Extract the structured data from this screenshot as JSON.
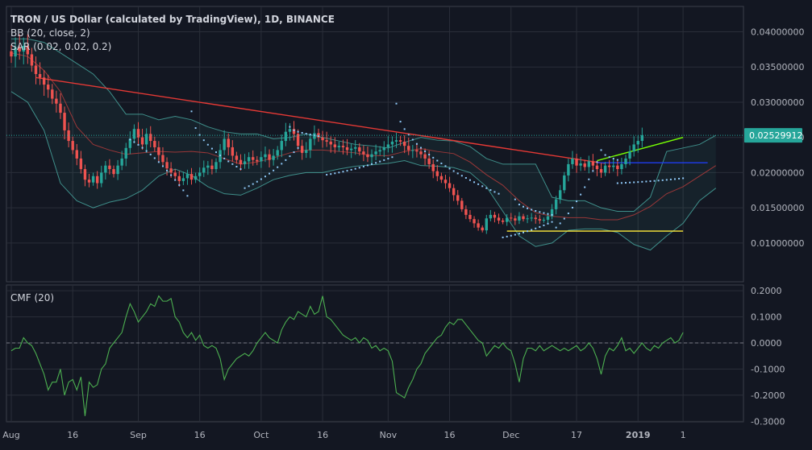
{
  "legend": {
    "title": "TRON / US Dollar (calculated by TradingView), 1D, BINANCE",
    "bb": "BB (20, close, 2)",
    "sar": "SAR (0.02, 0.02, 0.2)",
    "cmf": "CMF (20)"
  },
  "colors": {
    "background": "#131722",
    "up": "#26a69a",
    "down": "#ef5350",
    "bb_band": "#4db6ac",
    "bb_basis": "#b23b3b",
    "sar": "#90caf9",
    "cmf": "#4caf50",
    "trend_red": "#e53935",
    "trend_green": "#76ff03",
    "line_yellow": "#ffeb3b",
    "line_blue": "#1e3cf0",
    "price_badge": "#26a69a"
  },
  "chart_data": [
    {
      "type": "candlestick",
      "price_label": "0.02529912",
      "y_ticks": [
        "0.04000000",
        "0.03500000",
        "0.03000000",
        "0.02500000",
        "0.02000000",
        "0.01500000",
        "0.01000000"
      ],
      "y_tick_values": [
        0.04,
        0.035,
        0.03,
        0.025,
        0.02,
        0.015,
        0.01
      ],
      "ylim": [
        0.007,
        0.043
      ],
      "x_ticks": [
        "Aug",
        "16",
        "Sep",
        "16",
        "Oct",
        "16",
        "Nov",
        "16",
        "Dec",
        "17",
        "2019",
        "1"
      ],
      "x_tick_day_index": [
        0,
        15,
        31,
        46,
        61,
        76,
        92,
        107,
        122,
        138,
        153,
        164
      ],
      "ohlc_day0": "2018-08-01",
      "ohlc_close": [
        0.0365,
        0.0378,
        0.0372,
        0.038,
        0.0368,
        0.0352,
        0.034,
        0.0335,
        0.0325,
        0.0318,
        0.0305,
        0.0298,
        0.0285,
        0.026,
        0.0245,
        0.0232,
        0.022,
        0.0205,
        0.019,
        0.0186,
        0.0195,
        0.0185,
        0.02,
        0.021,
        0.0205,
        0.0198,
        0.021,
        0.022,
        0.0235,
        0.0248,
        0.0262,
        0.025,
        0.024,
        0.0255,
        0.0245,
        0.0236,
        0.0225,
        0.0215,
        0.0206,
        0.02,
        0.0195,
        0.0188,
        0.0192,
        0.0198,
        0.019,
        0.0195,
        0.02,
        0.0207,
        0.021,
        0.0205,
        0.0215,
        0.0232,
        0.0248,
        0.0236,
        0.0224,
        0.0218,
        0.0212,
        0.0216,
        0.0222,
        0.0218,
        0.0216,
        0.0222,
        0.0226,
        0.0218,
        0.0224,
        0.0232,
        0.0245,
        0.0258,
        0.0262,
        0.0255,
        0.0238,
        0.0228,
        0.0232,
        0.0248,
        0.0256,
        0.025,
        0.0246,
        0.0244,
        0.024,
        0.0236,
        0.0238,
        0.0236,
        0.0232,
        0.0234,
        0.0236,
        0.023,
        0.0226,
        0.0222,
        0.0226,
        0.023,
        0.0232,
        0.0236,
        0.024,
        0.0244,
        0.0246,
        0.0244,
        0.0238,
        0.0232,
        0.0232,
        0.023,
        0.0226,
        0.022,
        0.0212,
        0.0202,
        0.0195,
        0.019,
        0.0185,
        0.0178,
        0.0168,
        0.016,
        0.0148,
        0.014,
        0.0134,
        0.0128,
        0.0122,
        0.0118,
        0.0135,
        0.014,
        0.0136,
        0.0132,
        0.013,
        0.0136,
        0.0135,
        0.0132,
        0.0138,
        0.0134,
        0.0135,
        0.0136,
        0.0134,
        0.0132,
        0.0133,
        0.0138,
        0.0148,
        0.0162,
        0.0175,
        0.0196,
        0.0212,
        0.022,
        0.021,
        0.0213,
        0.0208,
        0.0216,
        0.021,
        0.0205,
        0.02,
        0.021,
        0.0208,
        0.021,
        0.0205,
        0.0212,
        0.022,
        0.023,
        0.024,
        0.0245,
        0.0253
      ],
      "bb_upper": [
        0.039,
        0.039,
        0.0385,
        0.037,
        0.0355,
        0.034,
        0.0315,
        0.0283,
        0.0283,
        0.0275,
        0.028,
        0.0275,
        0.0265,
        0.0258,
        0.0255,
        0.0255,
        0.0248,
        0.025,
        0.0255,
        0.025,
        0.0245,
        0.024,
        0.0238,
        0.0235,
        0.0243,
        0.025,
        0.0246,
        0.0245,
        0.0237,
        0.022,
        0.0212,
        0.0212,
        0.0212,
        0.0165,
        0.016,
        0.016,
        0.015,
        0.0145,
        0.0145,
        0.0165,
        0.023,
        0.0235,
        0.024,
        0.0253
      ],
      "bb_lower": [
        0.0315,
        0.03,
        0.026,
        0.0185,
        0.016,
        0.015,
        0.0158,
        0.0163,
        0.0175,
        0.0195,
        0.0205,
        0.0196,
        0.018,
        0.017,
        0.0168,
        0.0178,
        0.019,
        0.0196,
        0.02,
        0.02,
        0.0205,
        0.0209,
        0.0211,
        0.0213,
        0.0217,
        0.021,
        0.0209,
        0.0207,
        0.02,
        0.018,
        0.0145,
        0.011,
        0.0095,
        0.01,
        0.0118,
        0.012,
        0.012,
        0.0115,
        0.0098,
        0.009,
        0.011,
        0.0128,
        0.016,
        0.0178
      ],
      "bb_basis": [
        0.037,
        0.0365,
        0.0345,
        0.0315,
        0.0265,
        0.024,
        0.0232,
        0.0226,
        0.0228,
        0.023,
        0.0229,
        0.023,
        0.0228,
        0.022,
        0.0212,
        0.0215,
        0.0221,
        0.0228,
        0.0232,
        0.0232,
        0.023,
        0.0228,
        0.0224,
        0.0224,
        0.023,
        0.0234,
        0.023,
        0.0227,
        0.0215,
        0.0197,
        0.0182,
        0.016,
        0.0143,
        0.0138,
        0.0136,
        0.0136,
        0.0133,
        0.0133,
        0.014,
        0.0152,
        0.017,
        0.018,
        0.0195,
        0.021
      ],
      "sar_segments": [
        {
          "from": 29,
          "to": 43,
          "start": 0.0247,
          "end": 0.0167,
          "above": false
        },
        {
          "from": 44,
          "to": 56,
          "start": 0.0287,
          "end": 0.0205,
          "above": true
        },
        {
          "from": 57,
          "to": 70,
          "start": 0.0178,
          "end": 0.0235,
          "above": false
        },
        {
          "from": 68,
          "to": 75,
          "start": 0.0265,
          "end": 0.0252,
          "above": true
        },
        {
          "from": 77,
          "to": 93,
          "start": 0.0197,
          "end": 0.0222,
          "above": false
        },
        {
          "from": 94,
          "to": 119,
          "start": 0.0298,
          "end": 0.017,
          "above": true
        },
        {
          "from": 120,
          "to": 132,
          "start": 0.0108,
          "end": 0.013,
          "above": false
        },
        {
          "from": 123,
          "to": 132,
          "start": 0.0162,
          "end": 0.014,
          "above": true
        },
        {
          "from": 133,
          "to": 143,
          "start": 0.0122,
          "end": 0.0215,
          "above": false
        },
        {
          "from": 144,
          "to": 148,
          "start": 0.0232,
          "end": 0.0218,
          "above": true
        },
        {
          "from": 148,
          "to": 164,
          "start": 0.0185,
          "end": 0.0192,
          "above": false
        }
      ],
      "trendlines": [
        {
          "color": "red",
          "from_day": 6,
          "from_price": 0.0335,
          "to_day": 145,
          "to_price": 0.0213
        },
        {
          "color": "green",
          "from_day": 143,
          "from_price": 0.0217,
          "to_day": 164,
          "to_price": 0.025
        },
        {
          "color": "yellow",
          "from_day": 121,
          "from_price": 0.0117,
          "to_day": 164,
          "to_price": 0.0117
        },
        {
          "color": "blue",
          "from_day": 143,
          "from_price": 0.0214,
          "to_day": 170,
          "to_price": 0.0214
        }
      ]
    },
    {
      "type": "line",
      "name": "CMF (20)",
      "y_ticks": [
        "0.2000",
        "0.1000",
        "0.0000",
        "-0.1000",
        "-0.2000",
        "-0.3000"
      ],
      "y_tick_values": [
        0.2,
        0.1,
        0.0,
        -0.1,
        -0.2,
        -0.3
      ],
      "ylim": [
        -0.3,
        0.21
      ],
      "values": [
        -0.03,
        -0.02,
        -0.02,
        0.02,
        0.0,
        -0.01,
        -0.04,
        -0.08,
        -0.12,
        -0.18,
        -0.15,
        -0.15,
        -0.1,
        -0.2,
        -0.15,
        -0.14,
        -0.18,
        -0.13,
        -0.28,
        -0.15,
        -0.17,
        -0.16,
        -0.1,
        -0.08,
        -0.02,
        0.0,
        0.02,
        0.04,
        0.1,
        0.15,
        0.12,
        0.08,
        0.1,
        0.12,
        0.15,
        0.14,
        0.18,
        0.16,
        0.16,
        0.17,
        0.1,
        0.08,
        0.04,
        0.02,
        0.04,
        0.01,
        0.03,
        -0.01,
        -0.02,
        -0.01,
        -0.02,
        -0.06,
        -0.14,
        -0.1,
        -0.08,
        -0.06,
        -0.05,
        -0.04,
        -0.05,
        -0.03,
        0.0,
        0.02,
        0.04,
        0.02,
        0.01,
        0.0,
        0.05,
        0.08,
        0.1,
        0.09,
        0.12,
        0.11,
        0.1,
        0.14,
        0.11,
        0.12,
        0.18,
        0.1,
        0.09,
        0.07,
        0.05,
        0.03,
        0.02,
        0.01,
        0.02,
        0.0,
        0.02,
        0.01,
        -0.02,
        -0.01,
        -0.03,
        -0.02,
        -0.03,
        -0.07,
        -0.19,
        -0.2,
        -0.21,
        -0.17,
        -0.14,
        -0.1,
        -0.08,
        -0.04,
        -0.02,
        0.0,
        0.02,
        0.03,
        0.06,
        0.08,
        0.07,
        0.09,
        0.09,
        0.07,
        0.05,
        0.03,
        0.01,
        0.0,
        -0.05,
        -0.03,
        -0.01,
        -0.02,
        0.0,
        -0.02,
        -0.03,
        -0.08,
        -0.15,
        -0.06,
        -0.02,
        -0.02,
        -0.03,
        -0.01,
        -0.03,
        -0.02,
        -0.01,
        -0.02,
        -0.03,
        -0.02,
        -0.03,
        -0.02,
        -0.01,
        -0.03,
        -0.02,
        0.0,
        -0.02,
        -0.06,
        -0.12,
        -0.05,
        -0.02,
        -0.03,
        -0.01,
        0.02,
        -0.03,
        -0.02,
        -0.04,
        -0.02,
        0.0,
        -0.02,
        -0.03,
        -0.01,
        -0.02,
        0.0,
        0.01,
        0.02,
        0.0,
        0.01,
        0.04
      ]
    }
  ]
}
